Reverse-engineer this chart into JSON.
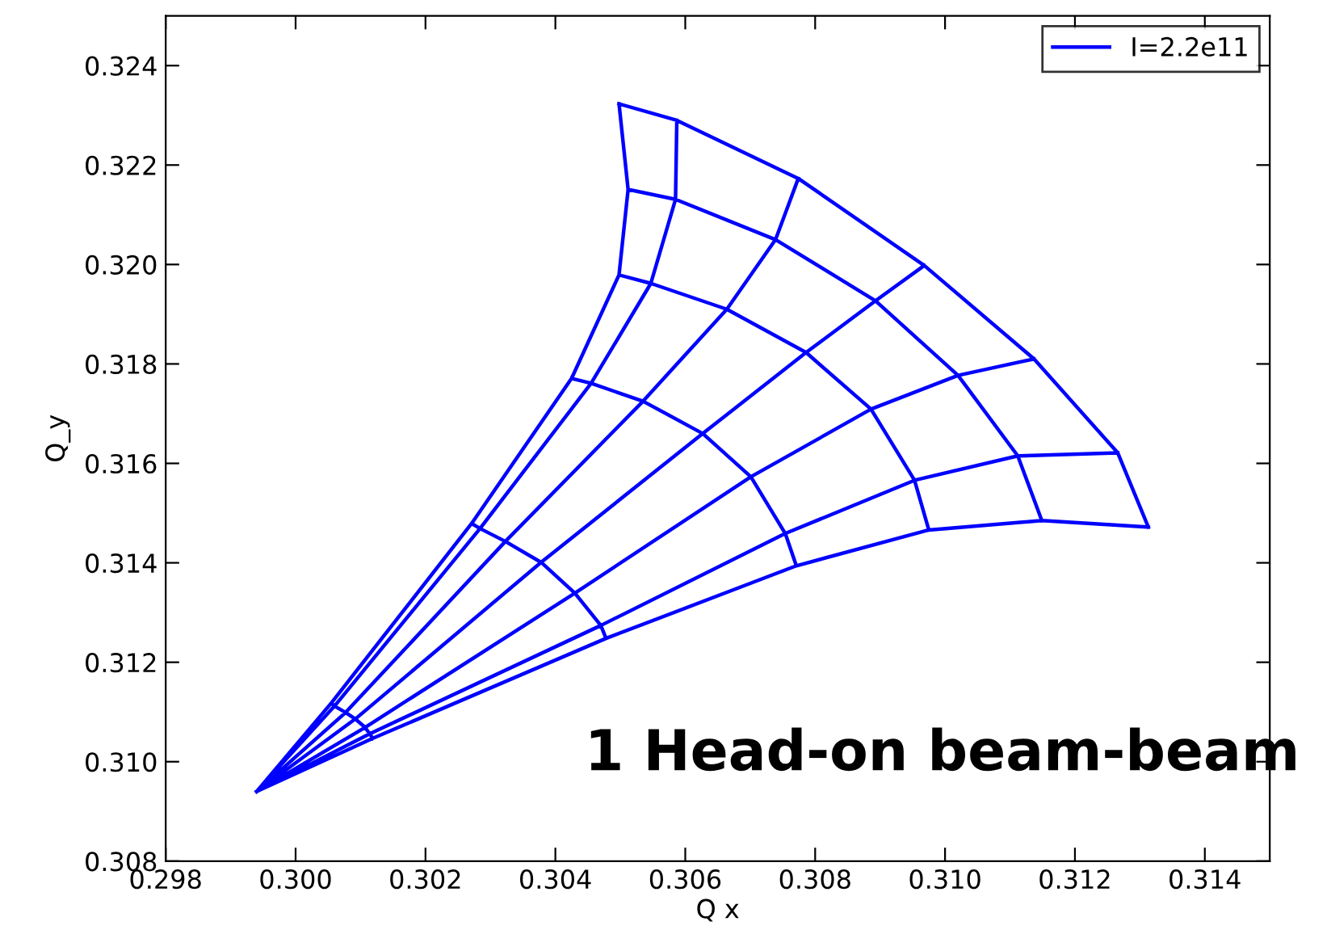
{
  "chart_data": {
    "type": "line",
    "xlabel": "Q x",
    "ylabel": "Q_y",
    "annotations": [
      "1 Head-on beam-beam"
    ],
    "xlim": [
      0.298,
      0.315
    ],
    "ylim": [
      0.308,
      0.325
    ],
    "xticks": [
      {
        "value": 0.298,
        "label": "0.298"
      },
      {
        "value": 0.3,
        "label": "0.300"
      },
      {
        "value": 0.302,
        "label": "0.302"
      },
      {
        "value": 0.304,
        "label": "0.304"
      },
      {
        "value": 0.306,
        "label": "0.306"
      },
      {
        "value": 0.308,
        "label": "0.308"
      },
      {
        "value": 0.31,
        "label": "0.310"
      },
      {
        "value": 0.312,
        "label": "0.312"
      },
      {
        "value": 0.314,
        "label": "0.314"
      }
    ],
    "yticks": [
      {
        "value": 0.308,
        "label": "0.308"
      },
      {
        "value": 0.31,
        "label": "0.310"
      },
      {
        "value": 0.312,
        "label": "0.312"
      },
      {
        "value": 0.314,
        "label": "0.314"
      },
      {
        "value": 0.316,
        "label": "0.316"
      },
      {
        "value": 0.318,
        "label": "0.318"
      },
      {
        "value": 0.32,
        "label": "0.320"
      },
      {
        "value": 0.322,
        "label": "0.322"
      },
      {
        "value": 0.324,
        "label": "0.324"
      }
    ],
    "grid": false,
    "legend": "top right",
    "marker": "none",
    "line_style": "solid",
    "series": [
      {
        "name": "I=2.2e11",
        "color": "#0000ff",
        "x": [
          0.30055,
          0.3006,
          0.30077,
          0.30092,
          0.30107,
          0.30114,
          0.30119,
          null,
          0.30271,
          0.30284,
          0.30323,
          0.30378,
          0.3043,
          0.3047,
          0.30478,
          null,
          0.30425,
          0.30455,
          0.30535,
          0.30627,
          0.30701,
          0.30754,
          0.30771,
          null,
          0.30498,
          0.30547,
          0.30664,
          0.30786,
          0.30886,
          0.30953,
          0.30975,
          null,
          0.30512,
          0.30585,
          0.30739,
          0.30893,
          0.3102,
          0.31112,
          0.31149,
          null,
          0.30498,
          0.30587,
          0.30774,
          0.30968,
          0.31137,
          0.31266,
          0.31313,
          null,
          0.2994,
          0.30055,
          0.30271,
          0.30425,
          0.30498,
          0.30512,
          0.30498,
          null,
          0.2994,
          0.3006,
          0.30284,
          0.30455,
          0.30547,
          0.30585,
          0.30587,
          null,
          0.2994,
          0.30077,
          0.30323,
          0.30535,
          0.30664,
          0.30739,
          0.30774,
          null,
          0.2994,
          0.30092,
          0.30378,
          0.30627,
          0.30786,
          0.30893,
          0.30968,
          null,
          0.2994,
          0.30107,
          0.3043,
          0.30701,
          0.30886,
          0.3102,
          0.31137,
          null,
          0.2994,
          0.30114,
          0.3047,
          0.30754,
          0.30953,
          0.31112,
          0.31266,
          null,
          0.2994,
          0.30119,
          0.30478,
          0.30771,
          0.30975,
          0.31149,
          0.31313
        ],
        "values": [
          0.31118,
          0.31112,
          0.31099,
          0.31086,
          0.31069,
          0.31056,
          0.31047,
          null,
          0.31479,
          0.31469,
          0.31443,
          0.31401,
          0.31339,
          0.31274,
          0.31248,
          null,
          0.31771,
          0.31761,
          0.31725,
          0.3166,
          0.31573,
          0.31459,
          0.31394,
          null,
          0.31979,
          0.31962,
          0.3191,
          0.31823,
          0.31709,
          0.31566,
          0.31466,
          null,
          0.32151,
          0.32131,
          0.3205,
          0.31927,
          0.31777,
          0.31615,
          0.31485,
          null,
          0.32323,
          0.3229,
          0.32173,
          0.31998,
          0.3181,
          0.31621,
          0.31472,
          null,
          0.3094,
          0.31118,
          0.31479,
          0.31771,
          0.31979,
          0.32151,
          0.32323,
          null,
          0.3094,
          0.31112,
          0.31469,
          0.31761,
          0.31962,
          0.32131,
          0.3229,
          null,
          0.3094,
          0.31099,
          0.31443,
          0.31725,
          0.3191,
          0.3205,
          0.32173,
          null,
          0.3094,
          0.31086,
          0.31401,
          0.3166,
          0.31823,
          0.31927,
          0.31998,
          null,
          0.3094,
          0.31069,
          0.31339,
          0.31573,
          0.31709,
          0.31777,
          0.3181,
          null,
          0.3094,
          0.31056,
          0.31274,
          0.31459,
          0.31566,
          0.31615,
          0.31621,
          null,
          0.3094,
          0.31047,
          0.31248,
          0.31394,
          0.31466,
          0.31485,
          0.31472
        ]
      }
    ]
  }
}
